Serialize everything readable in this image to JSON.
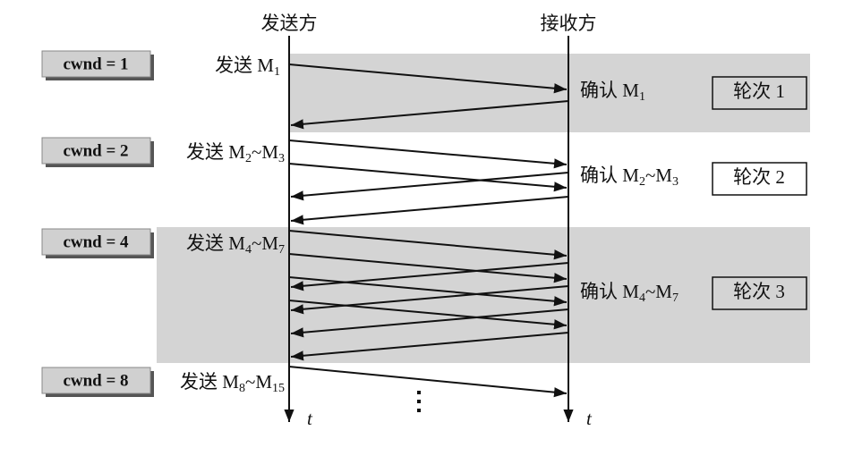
{
  "header": {
    "sender": "发送方",
    "receiver": "接收方"
  },
  "rounds": [
    {
      "cwnd": "cwnd = 1",
      "send": {
        "prefix": "发送 M",
        "from": "1"
      },
      "ack": {
        "prefix": "确认 M",
        "from": "1"
      },
      "round": "轮次 1"
    },
    {
      "cwnd": "cwnd = 2",
      "send": {
        "prefix": "发送 M",
        "from": "2",
        "sep": "~M",
        "to": "3"
      },
      "ack": {
        "prefix": "确认 M",
        "from": "2",
        "sep": "~M",
        "to": "3"
      },
      "round": "轮次 2"
    },
    {
      "cwnd": "cwnd = 4",
      "send": {
        "prefix": "发送 M",
        "from": "4",
        "sep": "~M",
        "to": "7"
      },
      "ack": {
        "prefix": "确认 M",
        "from": "4",
        "sep": "~M",
        "to": "7"
      },
      "round": "轮次 3"
    },
    {
      "cwnd": "cwnd = 8",
      "send": {
        "prefix": "发送 M",
        "from": "8",
        "sep": "~M",
        "to": "15"
      }
    }
  ],
  "axis": {
    "sender_time": "t",
    "receiver_time": "t"
  }
}
